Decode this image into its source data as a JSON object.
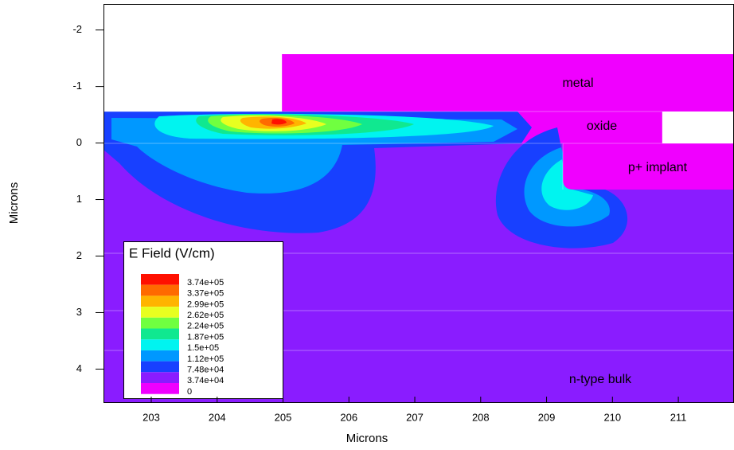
{
  "chart_data": {
    "type": "contour",
    "xlabel": "Microns",
    "ylabel": "Microns",
    "xlim": [
      202.275,
      211.845
    ],
    "ylim": [
      -2.46,
      4.6
    ],
    "y_inverted": true,
    "xticks": [
      203,
      204,
      205,
      206,
      207,
      208,
      209,
      210,
      211
    ],
    "yticks": [
      -2,
      -1,
      0,
      1,
      2,
      3,
      4
    ],
    "annotations": [
      "metal",
      "oxide",
      "p+ implant",
      "n-type bulk"
    ],
    "legend": {
      "title": "E Field (V/cm)",
      "values": [
        374000,
        337000,
        299000,
        262000,
        224000,
        187000,
        150000,
        112000,
        74800,
        37400,
        0
      ],
      "value_labels": [
        "3.74e+05",
        "3.37e+05",
        "2.99e+05",
        "2.62e+05",
        "2.24e+05",
        "1.87e+05",
        "1.5e+05",
        "1.12e+05",
        "7.48e+04",
        "3.74e+04",
        "0"
      ],
      "colors": [
        "#ff1000",
        "#ff6a00",
        "#ffb400",
        "#e8ff20",
        "#70ff40",
        "#10e890",
        "#00f4f0",
        "#0098ff",
        "#1840ff",
        "#8a1cff",
        "#f000ff"
      ]
    }
  }
}
